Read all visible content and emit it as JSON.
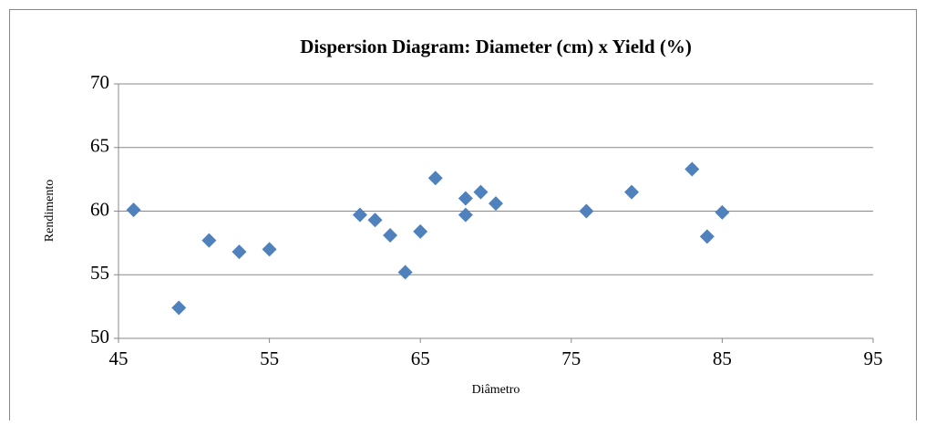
{
  "chart_data": {
    "type": "scatter",
    "title": "Dispersion Diagram: Diameter (cm) x Yield (%)",
    "x_label": "Diâmetro",
    "y_label": "Rendimento",
    "series": [
      {
        "name": "Rendimento",
        "color": "#4f81bd",
        "x": [
          46,
          49,
          51,
          53,
          55,
          61,
          62,
          63,
          64,
          65,
          66,
          68,
          68,
          69,
          70,
          76,
          79,
          83,
          84,
          85
        ],
        "values": [
          60.1,
          52.4,
          57.7,
          56.8,
          57.0,
          59.7,
          59.3,
          58.1,
          55.2,
          58.4,
          62.6,
          61.0,
          59.7,
          61.5,
          60.6,
          60.0,
          61.5,
          63.3,
          58.0,
          59.9
        ]
      }
    ],
    "xlim": [
      45,
      95
    ],
    "xticks": [
      45,
      55,
      65,
      75,
      85,
      95
    ],
    "ylim": [
      50,
      70
    ],
    "yticks": [
      50,
      55,
      60,
      65,
      70
    ],
    "grid": true
  }
}
